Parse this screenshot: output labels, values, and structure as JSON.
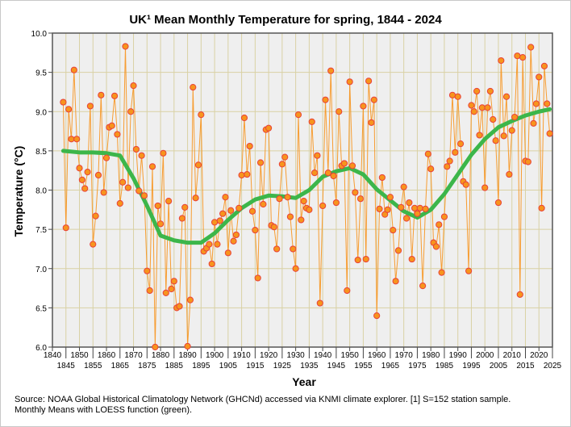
{
  "chart_data": {
    "type": "line",
    "title": "UK¹ Mean Monthly Temperature for spring, 1844 - 2024",
    "xlabel": "Year",
    "ylabel": "Temperature (°C)",
    "xlim": [
      1840,
      2025
    ],
    "ylim": [
      6.0,
      10.0
    ],
    "grid": true,
    "x_ticks_top": [
      "1840",
      "1850",
      "1860",
      "1870",
      "1880",
      "1890",
      "1900",
      "1910",
      "1920",
      "1930",
      "1940",
      "1950",
      "1960",
      "1970",
      "1980",
      "1990",
      "2000",
      "2010",
      "2020"
    ],
    "x_ticks_bottom": [
      "1845",
      "1855",
      "1865",
      "1875",
      "1885",
      "1895",
      "1905",
      "1915",
      "1925",
      "1935",
      "1945",
      "1955",
      "1965",
      "1975",
      "1985",
      "1995",
      "2005",
      "2015",
      "2025"
    ],
    "y_ticks": [
      "6.0",
      "6.5",
      "7.0",
      "7.5",
      "8.0",
      "8.5",
      "9.0",
      "9.5",
      "10.0"
    ],
    "series": [
      {
        "name": "Annual spring mean",
        "start_year": 1844,
        "color": "#f7941d",
        "values": [
          9.12,
          7.52,
          9.03,
          8.65,
          9.53,
          8.65,
          8.28,
          8.13,
          8.02,
          8.23,
          9.07,
          7.31,
          7.67,
          8.19,
          9.21,
          7.97,
          8.41,
          8.8,
          8.82,
          9.2,
          8.71,
          7.83,
          8.1,
          9.83,
          8.03,
          9.0,
          9.33,
          8.52,
          7.99,
          8.44,
          7.93,
          6.97,
          6.72,
          8.3,
          6.0,
          7.8,
          7.57,
          8.47,
          6.69,
          7.86,
          6.74,
          6.84,
          6.5,
          6.52,
          7.64,
          7.78,
          6.01,
          6.6,
          9.31,
          7.9,
          8.32,
          8.96,
          7.22,
          7.26,
          7.31,
          7.06,
          7.59,
          7.31,
          7.61,
          7.7,
          7.91,
          7.2,
          7.74,
          7.35,
          7.43,
          7.77,
          8.19,
          8.92,
          8.2,
          8.56,
          7.73,
          7.49,
          6.88,
          8.35,
          7.82,
          8.77,
          8.79,
          7.55,
          7.53,
          7.25,
          7.89,
          8.33,
          8.42,
          7.91,
          7.66,
          7.25,
          7.0,
          8.96,
          7.62,
          7.86,
          7.77,
          7.75,
          8.87,
          8.22,
          8.44,
          6.56,
          7.8,
          9.15,
          8.22,
          9.52,
          8.18,
          7.84,
          9.0,
          8.31,
          8.34,
          6.72,
          9.38,
          8.31,
          7.97,
          7.11,
          7.89,
          9.07,
          7.12,
          9.39,
          8.86,
          9.15,
          6.4,
          7.76,
          8.16,
          7.69,
          7.75,
          7.91,
          7.49,
          6.84,
          7.23,
          7.78,
          8.04,
          7.64,
          7.84,
          7.12,
          7.77,
          7.7,
          7.77,
          6.78,
          7.76,
          8.46,
          8.27,
          7.33,
          7.28,
          7.56,
          6.95,
          7.66,
          8.3,
          8.37,
          9.21,
          8.48,
          9.19,
          8.59,
          8.11,
          8.07,
          6.97,
          9.08,
          9.0,
          9.26,
          8.7,
          9.05,
          8.03,
          9.05,
          9.26,
          8.9,
          8.63,
          7.84,
          9.65,
          8.69,
          9.19,
          8.2,
          8.76,
          8.93,
          9.71,
          6.67,
          9.69,
          8.37,
          8.36,
          9.82,
          8.85,
          9.1,
          9.44,
          7.77,
          9.58,
          9.1,
          8.72
        ]
      },
      {
        "name": "LOESS",
        "color": "#3cb64a",
        "x": [
          1844,
          1850,
          1855,
          1860,
          1865,
          1870,
          1875,
          1880,
          1885,
          1890,
          1895,
          1900,
          1905,
          1910,
          1915,
          1920,
          1925,
          1930,
          1935,
          1940,
          1945,
          1950,
          1955,
          1960,
          1965,
          1970,
          1975,
          1980,
          1985,
          1990,
          1995,
          2000,
          2005,
          2010,
          2015,
          2020,
          2024
        ],
        "values": [
          8.5,
          8.48,
          8.48,
          8.47,
          8.44,
          8.15,
          7.8,
          7.42,
          7.36,
          7.33,
          7.33,
          7.45,
          7.62,
          7.77,
          7.88,
          7.93,
          7.92,
          7.9,
          8.0,
          8.17,
          8.24,
          8.28,
          8.2,
          8.01,
          7.87,
          7.73,
          7.65,
          7.75,
          7.95,
          8.2,
          8.45,
          8.65,
          8.8,
          8.88,
          8.95,
          9.0,
          9.03
        ]
      }
    ]
  },
  "source_note": "Source: NOAA Global Historical Climatology Network (GHCNd) accessed via KNMI climate explorer. [1] S=152 station sample. Monthly Means with LOESS function (green)."
}
